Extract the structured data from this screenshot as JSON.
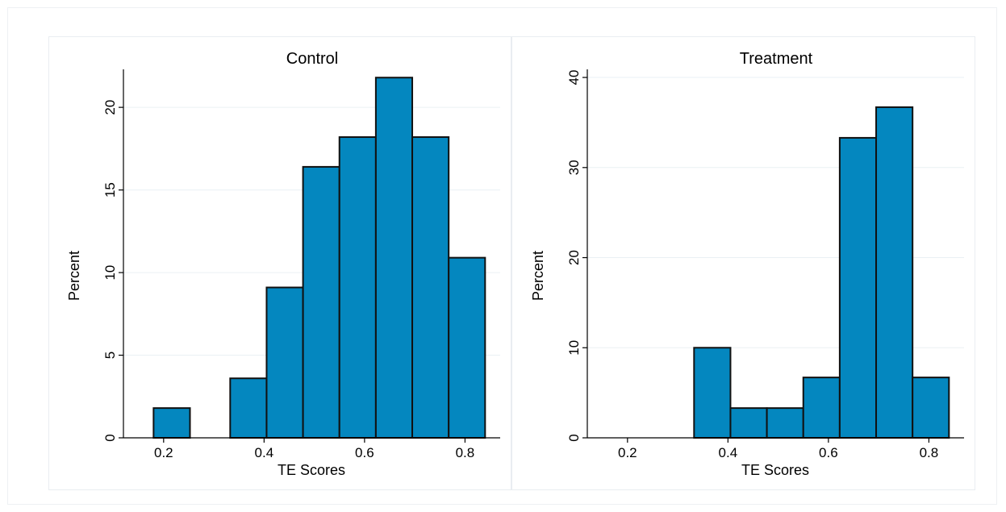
{
  "colors": {
    "bar_fill": "#0487bf",
    "bar_outline": "#111111",
    "grid": "#eaf0f4"
  },
  "chart_data": [
    {
      "type": "bar",
      "title": "Control",
      "xlabel": "TE Scores",
      "ylabel": "Percent",
      "bin_width": 0.0725,
      "bins": [
        {
          "start": 0.18,
          "end": 0.2525,
          "value": 1.8
        },
        {
          "start": 0.3325,
          "end": 0.405,
          "value": 3.6
        },
        {
          "start": 0.405,
          "end": 0.4775,
          "value": 9.1
        },
        {
          "start": 0.4775,
          "end": 0.55,
          "value": 16.4
        },
        {
          "start": 0.55,
          "end": 0.6225,
          "value": 18.2
        },
        {
          "start": 0.6225,
          "end": 0.695,
          "value": 21.8
        },
        {
          "start": 0.695,
          "end": 0.7675,
          "value": 18.2
        },
        {
          "start": 0.7675,
          "end": 0.84,
          "value": 10.9
        }
      ],
      "xticks": [
        0.2,
        0.4,
        0.6,
        0.8
      ],
      "xtick_labels": [
        "0.2",
        "0.4",
        "0.6",
        "0.8"
      ],
      "yticks": [
        0,
        5,
        10,
        15,
        20
      ],
      "ytick_labels": [
        "0",
        "5",
        "10",
        "15",
        "20"
      ],
      "xlim": [
        0.12,
        0.87
      ],
      "ylim": [
        0,
        22.3
      ],
      "grid": true
    },
    {
      "type": "bar",
      "title": "Treatment",
      "xlabel": "TE Scores",
      "ylabel": "Percent",
      "bin_width": 0.0725,
      "bins": [
        {
          "start": 0.3325,
          "end": 0.405,
          "value": 10.0
        },
        {
          "start": 0.405,
          "end": 0.4775,
          "value": 3.3
        },
        {
          "start": 0.4775,
          "end": 0.55,
          "value": 3.3
        },
        {
          "start": 0.55,
          "end": 0.6225,
          "value": 6.7
        },
        {
          "start": 0.6225,
          "end": 0.695,
          "value": 33.3
        },
        {
          "start": 0.695,
          "end": 0.7675,
          "value": 36.7
        },
        {
          "start": 0.7675,
          "end": 0.84,
          "value": 6.7
        }
      ],
      "xticks": [
        0.2,
        0.4,
        0.6,
        0.8
      ],
      "xtick_labels": [
        "0.2",
        "0.4",
        "0.6",
        "0.8"
      ],
      "yticks": [
        0,
        10,
        20,
        30,
        40
      ],
      "ytick_labels": [
        "0",
        "10",
        "20",
        "30",
        "40"
      ],
      "xlim": [
        0.12,
        0.87
      ],
      "ylim": [
        0,
        40.9
      ],
      "grid": true
    }
  ]
}
